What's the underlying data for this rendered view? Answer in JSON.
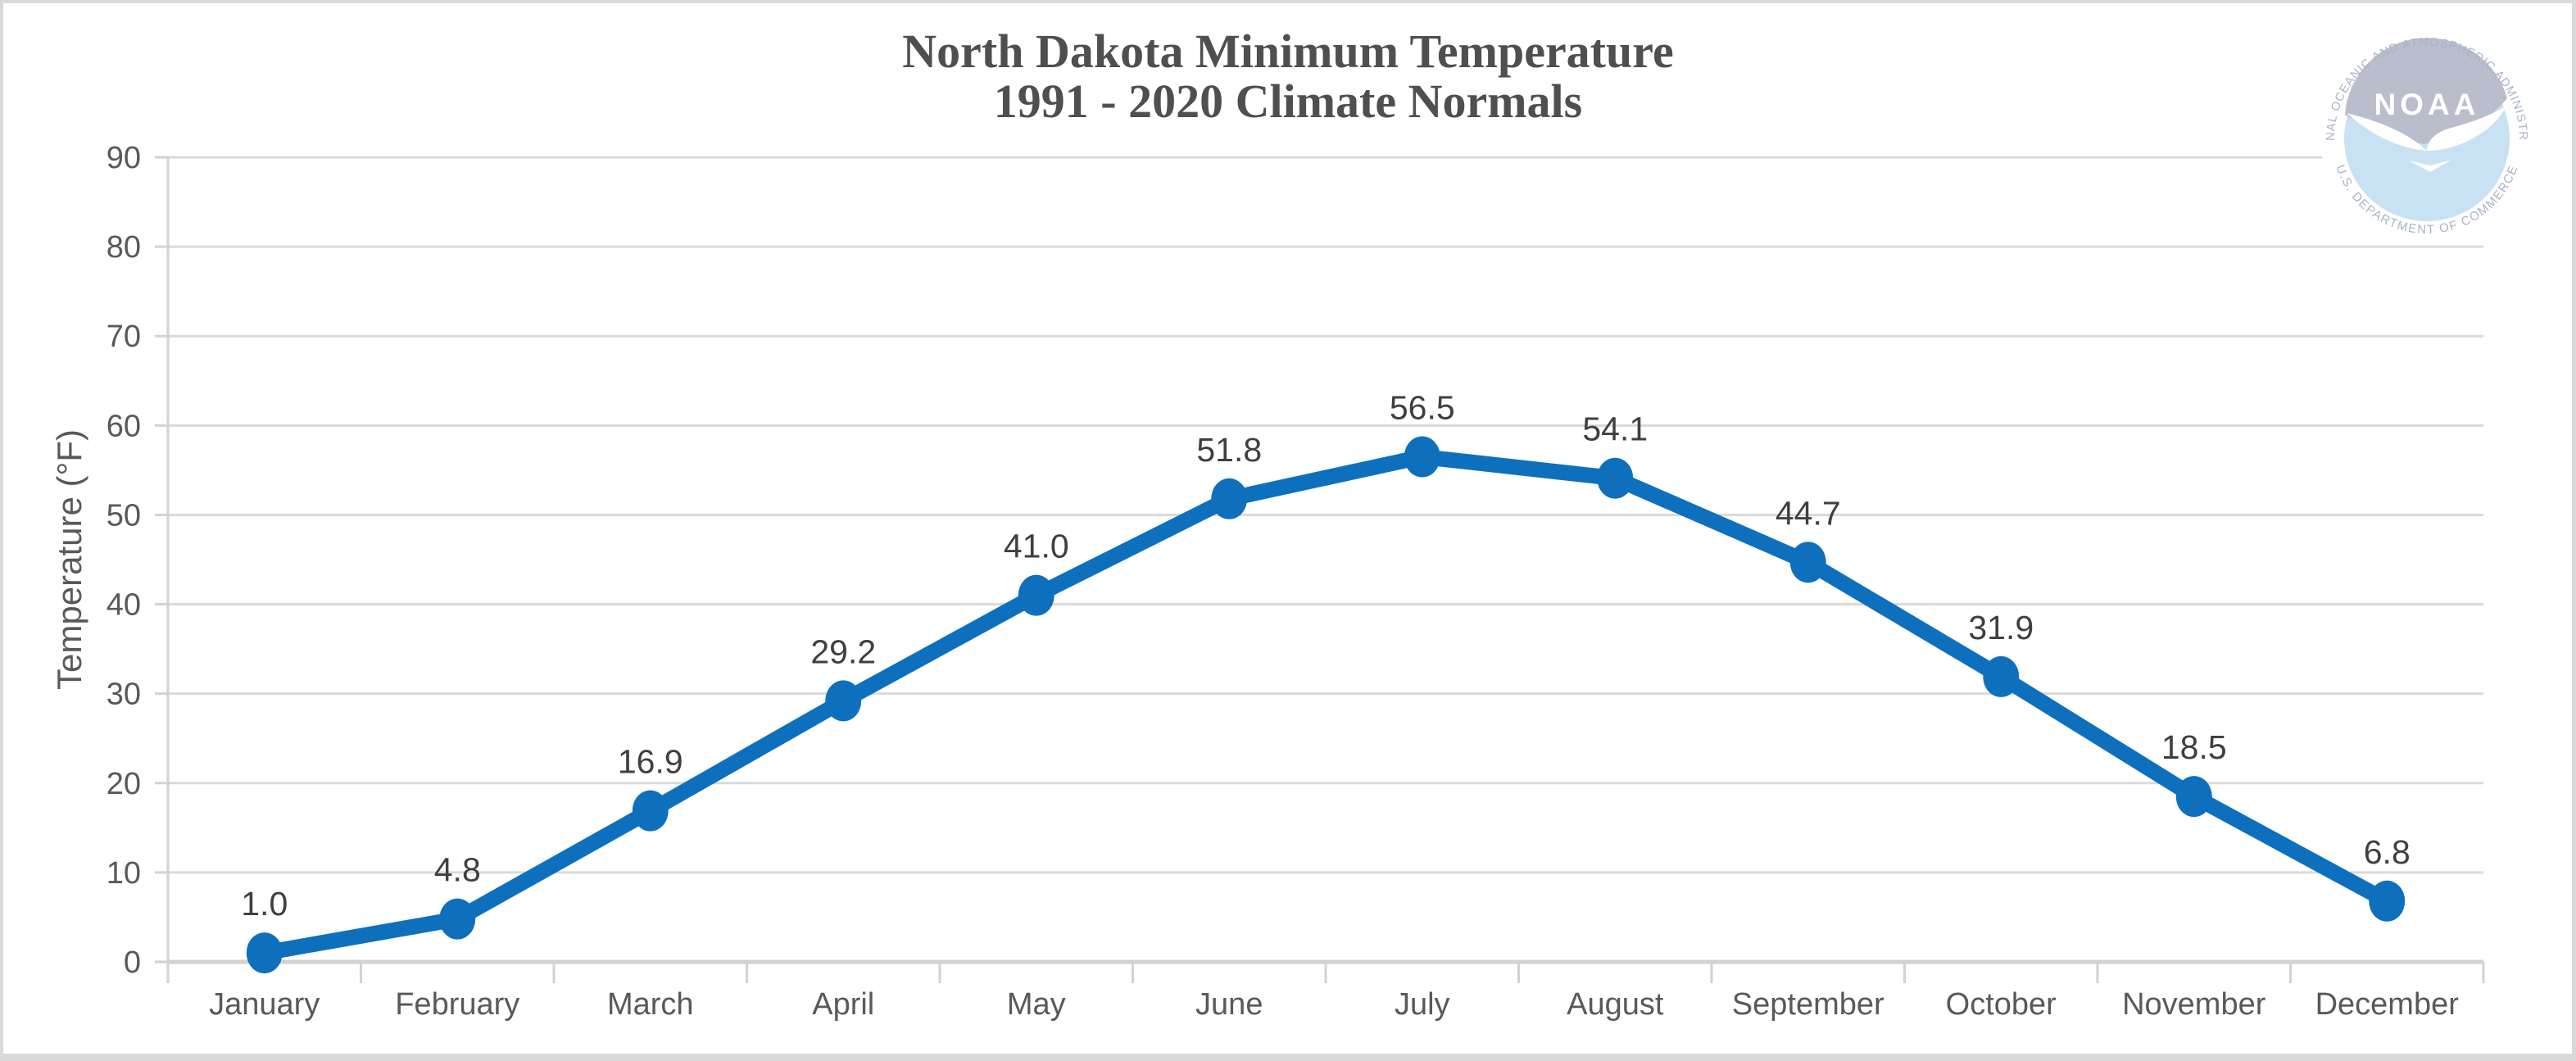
{
  "header": {
    "title_line1": "North Dakota Minimum Temperature",
    "title_line2": "1991 - 2020 Climate Normals"
  },
  "chart_data": {
    "type": "line",
    "title": "North Dakota Minimum Temperature",
    "subtitle": "1991 - 2020 Climate Normals",
    "categories": [
      "January",
      "February",
      "March",
      "April",
      "May",
      "June",
      "July",
      "August",
      "September",
      "October",
      "November",
      "December"
    ],
    "series": [
      {
        "name": "Minimum Temperature",
        "values": [
          1.0,
          4.8,
          16.9,
          29.2,
          41.0,
          51.8,
          56.5,
          54.1,
          44.7,
          31.9,
          18.5,
          6.8
        ],
        "labels": [
          "1.0",
          "4.8",
          "16.9",
          "29.2",
          "41.0",
          "51.8",
          "56.5",
          "54.1",
          "44.7",
          "31.9",
          "18.5",
          "6.8"
        ]
      }
    ],
    "xlabel": "",
    "ylabel": "Temperature (°F)",
    "ylim": [
      0,
      90
    ],
    "yticks": [
      0,
      10,
      20,
      30,
      40,
      50,
      60,
      70,
      80,
      90
    ],
    "grid": "horizontal",
    "legend_position": "none",
    "marker": "circle"
  },
  "colors": {
    "line": "#0E70BD",
    "marker": "#0E70BD",
    "gridline": "#DADADA",
    "axis_line": "#D2D2D2",
    "tick": "#D2D2D2",
    "title_text": "#4F4F4F",
    "axis_text": "#595959",
    "data_label_text": "#3F3F3F",
    "frame_border": "#D9D9D9"
  },
  "logo": {
    "acronym": "NOAA",
    "ring_text_top": "NATIONAL OCEANIC AND ATMOSPHERIC ADMINISTRATION",
    "ring_text_bottom": "U.S. DEPARTMENT OF COMMERCE",
    "sky_color": "#B9BDCC",
    "sea_color": "#C8E2F3",
    "ring_text_color": "#A9B3C8"
  }
}
